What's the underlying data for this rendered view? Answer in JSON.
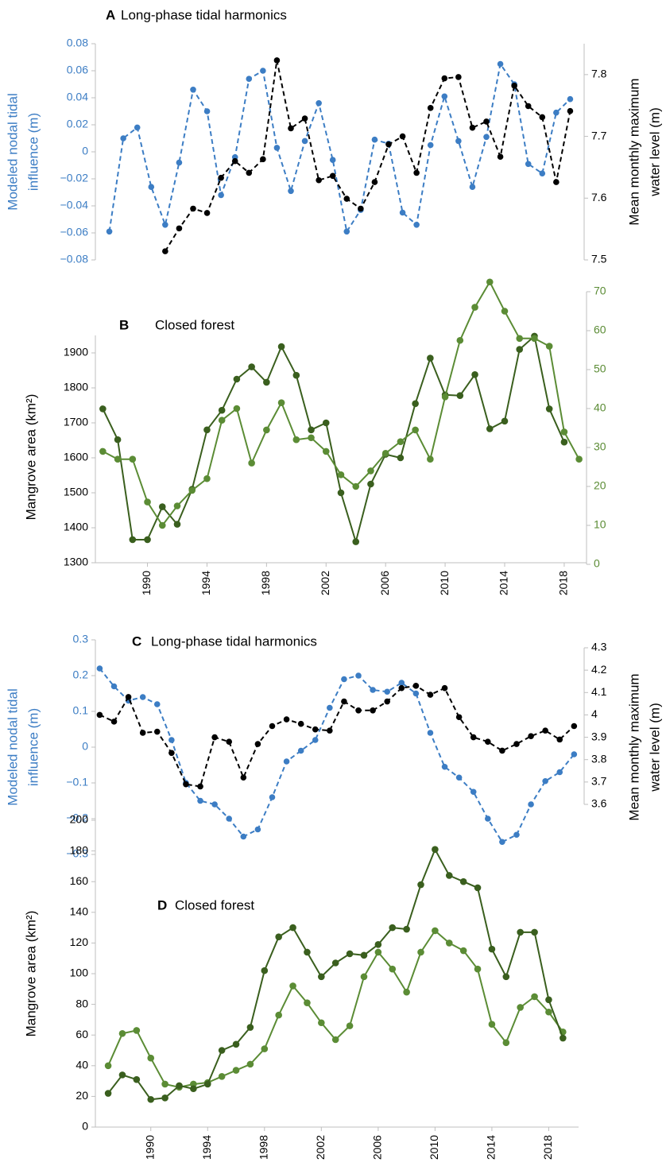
{
  "chart_data": [
    {
      "type": "line",
      "label": "A",
      "title": "Long-phase tidal harmonics",
      "y_label": [
        "Modeled nodal tidal",
        "influence (m)"
      ],
      "y_color": "#3c7dc4",
      "y2_label": [
        "Mean monthly maximum",
        "water level (m)"
      ],
      "y2_color": "#000000",
      "xlim": [
        1987,
        2022
      ],
      "ylim": [
        -0.08,
        0.08
      ],
      "yticks": [
        {
          "value": -0.08,
          "label": "−0.08"
        },
        {
          "value": -0.06,
          "label": "−0.06"
        },
        {
          "value": -0.04,
          "label": "−0.04"
        },
        {
          "value": -0.02,
          "label": "−0.02"
        },
        0,
        0.02,
        0.04,
        0.06,
        0.08
      ],
      "y2lim": [
        7.5,
        7.85
      ],
      "y2ticks": [
        7.5,
        7.6,
        7.7,
        7.8
      ],
      "series": [
        {
          "color": "#3c7dc4",
          "line_style": "dashed",
          "x": [
            1988,
            1989,
            1990,
            1991,
            1992,
            1993,
            1994,
            1995,
            1996,
            1997,
            1998,
            1999,
            2000,
            2001,
            2002,
            2003,
            2004,
            2005,
            2006,
            2007,
            2008,
            2009,
            2010,
            2011,
            2012,
            2013,
            2014,
            2015,
            2016,
            2017,
            2018,
            2019,
            2020,
            2021
          ],
          "values": [
            -0.059,
            0.01,
            0.018,
            -0.026,
            -0.054,
            -0.008,
            0.046,
            0.03,
            -0.032,
            -0.004,
            0.054,
            0.06,
            0.003,
            -0.029,
            0.008,
            0.036,
            -0.006,
            -0.059,
            -0.043,
            0.009,
            0.006,
            -0.045,
            -0.054,
            0.005,
            0.041,
            0.008,
            -0.026,
            0.011,
            0.065,
            0.05,
            -0.009,
            -0.016,
            0.029,
            0.039
          ]
        },
        {
          "color": "#000000",
          "line_style": "dashed",
          "axis": "y2",
          "x": [
            1992,
            1993,
            1994,
            1995,
            1996,
            1997,
            1998,
            1999,
            2000,
            2001,
            2002,
            2003,
            2004,
            2005,
            2006,
            2007,
            2008,
            2009,
            2010,
            2011,
            2012,
            2013,
            2014,
            2015,
            2016,
            2017,
            2018,
            2019,
            2020,
            2021
          ],
          "values": [
            7.514,
            7.551,
            7.583,
            7.576,
            7.633,
            7.66,
            7.641,
            7.663,
            7.823,
            7.713,
            7.729,
            7.629,
            7.636,
            7.599,
            7.583,
            7.626,
            7.687,
            7.7,
            7.641,
            7.746,
            7.794,
            7.796,
            7.714,
            7.724,
            7.667,
            7.782,
            7.749,
            7.731,
            7.626,
            7.741
          ]
        }
      ]
    },
    {
      "type": "line",
      "label": "B",
      "title": "Closed forest",
      "y_label": "Mangrove area (km²)",
      "y_color": "#000000",
      "y2_color": "#5b8c35",
      "xlim": [
        1986.5,
        2019.5
      ],
      "xticks": [
        1990,
        1994,
        1998,
        2002,
        2006,
        2010,
        2014,
        2018
      ],
      "ylim": [
        1300,
        1950
      ],
      "yticks": [
        1300,
        1400,
        1500,
        1600,
        1700,
        1800,
        1900
      ],
      "y2lim": [
        0,
        70
      ],
      "y2ticks": [
        0,
        10,
        20,
        30,
        40,
        50,
        60,
        70
      ],
      "series": [
        {
          "color": "#3a5f1e",
          "line_style": "solid",
          "x": [
            1987,
            1988,
            1989,
            1990,
            1991,
            1992,
            1993,
            1994,
            1995,
            1996,
            1997,
            1998,
            1999,
            2000,
            2001,
            2002,
            2003,
            2004,
            2005,
            2006,
            2007,
            2008,
            2009,
            2010,
            2011,
            2012,
            2013,
            2014,
            2015,
            2016,
            2017,
            2018
          ],
          "values": [
            1740,
            1652,
            1366,
            1366,
            1460,
            1410,
            1510,
            1680,
            1736,
            1825,
            1860,
            1816,
            1918,
            1836,
            1680,
            1700,
            1500,
            1360,
            1525,
            1610,
            1600,
            1755,
            1885,
            1780,
            1778,
            1838,
            1683,
            1705,
            1910,
            1948,
            1740,
            1645
          ]
        },
        {
          "color": "#5b8c35",
          "line_style": "solid",
          "axis": "y2",
          "x": [
            1987,
            1988,
            1989,
            1990,
            1991,
            1992,
            1993,
            1994,
            1995,
            1996,
            1997,
            1998,
            1999,
            2000,
            2001,
            2002,
            2003,
            2004,
            2005,
            2006,
            2007,
            2008,
            2009,
            2010,
            2011,
            2012,
            2013,
            2014,
            2015,
            2016,
            2017,
            2018,
            2019
          ],
          "values": [
            29,
            27,
            27,
            16,
            10,
            15,
            19,
            22,
            37,
            40,
            26,
            34.5,
            41.5,
            32,
            32.5,
            29,
            23,
            20,
            24,
            28.5,
            31.5,
            34.5,
            27,
            43,
            57.5,
            66,
            72.5,
            65,
            58,
            58,
            56,
            34,
            27
          ]
        }
      ]
    },
    {
      "type": "line",
      "label": "C",
      "title": "Long-phase tidal harmonics",
      "y_label": [
        "Modeled nodal tidal",
        "influence (m)"
      ],
      "y_color": "#3c7dc4",
      "y2_label": [
        "Mean monthly maximum",
        "water level (m)"
      ],
      "y2_color": "#000000",
      "xlim": [
        1986.7,
        2020.7
      ],
      "ylim": [
        -0.3,
        0.3
      ],
      "yticks": [
        {
          "value": -0.3,
          "label": "−0.3"
        },
        {
          "value": -0.2,
          "label": "−0.2"
        },
        {
          "value": -0.1,
          "label": "−0.1"
        },
        0,
        0.1,
        0.2,
        0.3
      ],
      "y2lim": [
        3.6,
        4.3
      ],
      "y2ticks": [
        3.6,
        3.7,
        3.8,
        3.9,
        4,
        4.1,
        4.2,
        4.3
      ],
      "series": [
        {
          "color": "#3c7dc4",
          "line_style": "dashed",
          "x": [
            1987,
            1988,
            1989,
            1990,
            1991,
            1992,
            1993,
            1994,
            1995,
            1996,
            1997,
            1998,
            1999,
            2000,
            2001,
            2002,
            2003,
            2004,
            2005,
            2006,
            2007,
            2008,
            2009,
            2010,
            2011,
            2012,
            2013,
            2014,
            2015,
            2016,
            2017,
            2018,
            2019,
            2020
          ],
          "values": [
            0.22,
            0.17,
            0.13,
            0.14,
            0.12,
            0.02,
            -0.1,
            -0.15,
            -0.16,
            -0.2,
            -0.25,
            -0.23,
            -0.14,
            -0.04,
            -0.01,
            0.02,
            0.11,
            0.19,
            0.2,
            0.16,
            0.155,
            0.18,
            0.15,
            0.04,
            -0.055,
            -0.085,
            -0.125,
            -0.2,
            -0.265,
            -0.245,
            -0.16,
            -0.095,
            -0.07,
            -0.02
          ]
        },
        {
          "color": "#000000",
          "line_style": "dashed",
          "axis": "y2",
          "x": [
            1987,
            1988,
            1989,
            1990,
            1991,
            1992,
            1993,
            1994,
            1995,
            1996,
            1997,
            1998,
            1999,
            2000,
            2001,
            2002,
            2003,
            2004,
            2005,
            2006,
            2007,
            2008,
            2009,
            2010,
            2011,
            2012,
            2013,
            2014,
            2015,
            2016,
            2017,
            2018,
            2019,
            2020
          ],
          "values": [
            4.0,
            3.97,
            4.08,
            3.92,
            3.925,
            3.83,
            3.69,
            3.68,
            3.9,
            3.88,
            3.72,
            3.87,
            3.95,
            3.98,
            3.96,
            3.935,
            3.93,
            4.06,
            4.02,
            4.02,
            4.06,
            4.12,
            4.13,
            4.09,
            4.12,
            3.99,
            3.9,
            3.88,
            3.84,
            3.87,
            3.905,
            3.93,
            3.89,
            3.95
          ]
        }
      ]
    },
    {
      "type": "line",
      "label": "D",
      "title": "Closed forest",
      "y_label": "Mangrove area (km²)",
      "y_color": "#000000",
      "xlim": [
        1986.1,
        2020.1
      ],
      "xticks": [
        1990,
        1994,
        1998,
        2002,
        2006,
        2010,
        2014,
        2018
      ],
      "ylim": [
        0,
        200
      ],
      "yticks": [
        0,
        20,
        40,
        60,
        80,
        100,
        120,
        140,
        160,
        180,
        200
      ],
      "series": [
        {
          "color": "#5b8c35",
          "line_style": "solid",
          "x": [
            1987,
            1988,
            1989,
            1990,
            1991,
            1992,
            1993,
            1994,
            1995,
            1996,
            1997,
            1998,
            1999,
            2000,
            2001,
            2002,
            2003,
            2004,
            2005,
            2006,
            2007,
            2008,
            2009,
            2010,
            2011,
            2012,
            2013,
            2014,
            2015,
            2016,
            2017,
            2018,
            2019
          ],
          "values": [
            40,
            61,
            63,
            45,
            28,
            26,
            28,
            29,
            33,
            37,
            41,
            51,
            73,
            92,
            81,
            68,
            57,
            66,
            98,
            114,
            103,
            88,
            114,
            128,
            120,
            115,
            103,
            67,
            55,
            78,
            85,
            75,
            62
          ]
        },
        {
          "color": "#3a5f1e",
          "line_style": "solid",
          "x": [
            1987,
            1988,
            1989,
            1990,
            1991,
            1992,
            1993,
            1994,
            1995,
            1996,
            1997,
            1998,
            1999,
            2000,
            2001,
            2002,
            2003,
            2004,
            2005,
            2006,
            2007,
            2008,
            2009,
            2010,
            2011,
            2012,
            2013,
            2014,
            2015,
            2016,
            2017,
            2018,
            2019
          ],
          "values": [
            22,
            34,
            31,
            18,
            19,
            27,
            25,
            28,
            50,
            54,
            65,
            102,
            124,
            130,
            114,
            98,
            107,
            113,
            112,
            119,
            130,
            129,
            158,
            181,
            164,
            160,
            156,
            116,
            98,
            127,
            127,
            83,
            58
          ]
        }
      ]
    }
  ]
}
